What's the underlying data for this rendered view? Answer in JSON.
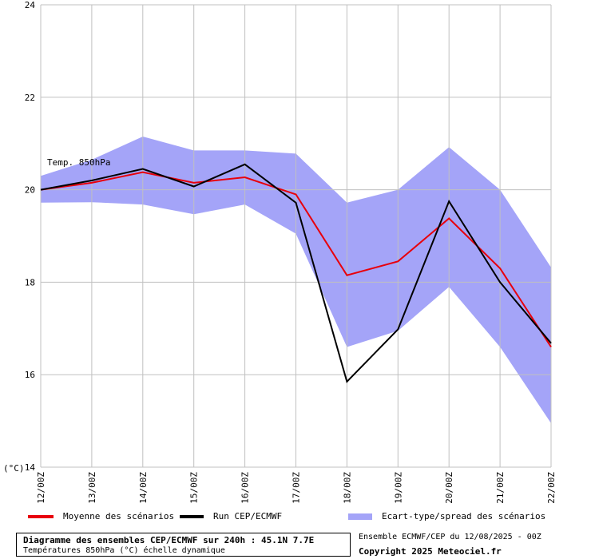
{
  "chart_data": {
    "type": "line",
    "y_unit_label": "(°C)",
    "ylim": [
      14,
      24
    ],
    "yticks": [
      14,
      16,
      18,
      20,
      22,
      24
    ],
    "grid": true,
    "annotation": "Temp. 850hPa",
    "categories": [
      "12/00Z",
      "13/00Z",
      "14/00Z",
      "15/00Z",
      "16/00Z",
      "17/00Z",
      "18/00Z",
      "19/00Z",
      "20/00Z",
      "21/00Z",
      "22/00Z"
    ],
    "series": [
      {
        "name": "Moyenne des scénarios",
        "color": "#e8000b",
        "values": [
          20.0,
          20.15,
          20.38,
          20.15,
          20.27,
          19.9,
          18.15,
          18.45,
          19.38,
          18.3,
          16.6
        ]
      },
      {
        "name": "Run CEP/ECMWF",
        "color": "#000000",
        "values": [
          20.0,
          20.2,
          20.45,
          20.07,
          20.55,
          19.72,
          15.85,
          16.98,
          19.75,
          18.0,
          16.68
        ]
      }
    ],
    "spread": {
      "name": "Ecart-type/spread des scénarios",
      "color": "#a4a4f8",
      "upper": [
        20.3,
        20.65,
        21.15,
        20.85,
        20.85,
        20.78,
        19.72,
        20.0,
        20.92,
        20.0,
        18.32
      ],
      "lower": [
        19.72,
        19.73,
        19.68,
        19.47,
        19.68,
        19.05,
        16.6,
        16.95,
        17.9,
        16.6,
        14.95
      ]
    }
  },
  "footer": {
    "title": "Diagramme des ensembles CEP/ECMWF sur 240h : 45.1N 7.7E",
    "subtitle": "Températures 850hPa (°C) échelle dynamique",
    "ensemble": "Ensemble ECMWF/CEP du 12/08/2025 - 00Z",
    "copyright": "Copyright 2025 Meteociel.fr"
  }
}
